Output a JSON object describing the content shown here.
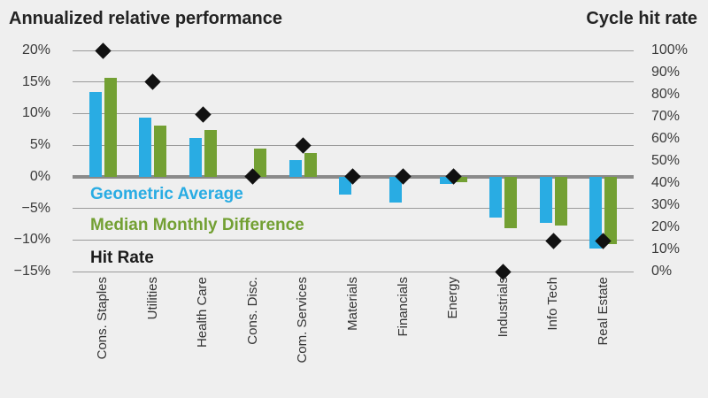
{
  "header": {
    "left_title": "Annualized relative performance",
    "right_title": "Cycle hit rate"
  },
  "legend": {
    "items": [
      {
        "label": "Geometric Average",
        "color": "#29ACE3"
      },
      {
        "label": "Median Monthly Difference",
        "color": "#73A033"
      },
      {
        "label": "Hit Rate",
        "color": "#1C1C1C"
      }
    ]
  },
  "colors": {
    "background": "#EFEFEF",
    "gridline": "#9A9A9A",
    "zero_line": "#8A8A8A",
    "bar_blue": "#29ACE3",
    "bar_green": "#73A033",
    "diamond_black": "#111111"
  },
  "chart_data": {
    "type": "bar",
    "title": "Annualized relative performance",
    "right_title": "Cycle hit rate",
    "categories": [
      "Cons. Staples",
      "Utilities",
      "Health Care",
      "Cons. Disc.",
      "Com. Services",
      "Materials",
      "Financials",
      "Energy",
      "Industrials",
      "Info Tech",
      "Real Estate"
    ],
    "series": [
      {
        "name": "Geometric Average",
        "type": "bar",
        "axis": "left",
        "color": "#29ACE3",
        "values": [
          13.4,
          9.4,
          6.1,
          0,
          2.6,
          -2.8,
          -4.1,
          -1.2,
          -6.5,
          -7.3,
          -11.3
        ]
      },
      {
        "name": "Median Monthly Difference",
        "type": "bar",
        "axis": "left",
        "color": "#73A033",
        "values": [
          15.6,
          8.1,
          7.4,
          4.4,
          3.7,
          0,
          0,
          -0.8,
          -8.1,
          -7.7,
          -10.6
        ]
      },
      {
        "name": "Hit Rate",
        "type": "scatter",
        "marker": "diamond",
        "axis": "right",
        "color": "#111111",
        "values": [
          100,
          86,
          71,
          43,
          57,
          43,
          43,
          43,
          0,
          14,
          14
        ]
      }
    ],
    "left_axis": {
      "label": "Annualized relative performance",
      "min": -15,
      "max": 20,
      "ticks": [
        "20%",
        "15%",
        "10%",
        "5%",
        "0%",
        "−5%",
        "−10%",
        "−15%"
      ]
    },
    "right_axis": {
      "label": "Cycle hit rate",
      "min": 0,
      "max": 100,
      "ticks": [
        "100%",
        "90%",
        "80%",
        "70%",
        "60%",
        "50%",
        "40%",
        "30%",
        "20%",
        "10%",
        "0%"
      ]
    },
    "grid": true,
    "legend_position": "inside-left"
  }
}
